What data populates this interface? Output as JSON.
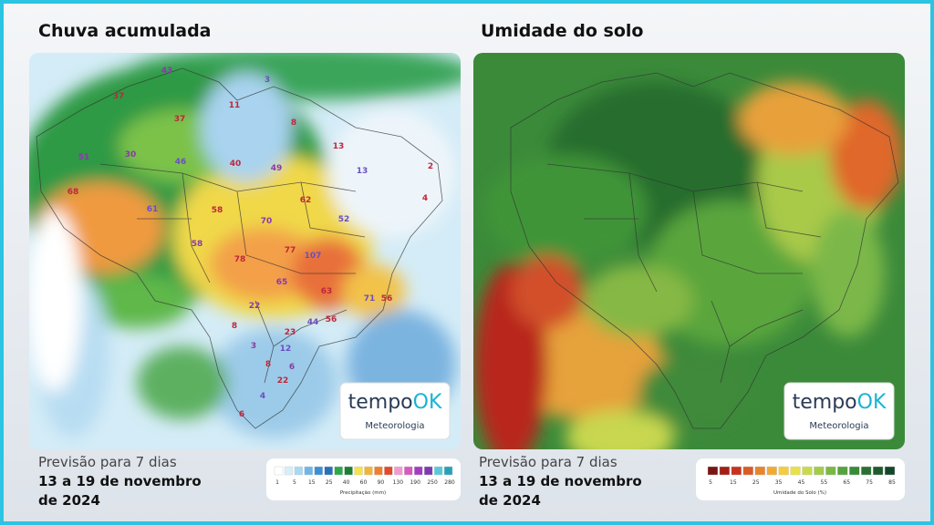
{
  "panels": [
    {
      "title": "Chuva acumulada",
      "subtitle": "Previsão para 7 dias",
      "period": [
        "13 a 19 de novembro",
        "de 2024"
      ],
      "logo": {
        "brand": "tempo",
        "brand_accent": "OK",
        "tagline": "Meteorologia"
      },
      "legend": {
        "title": "Precipitação (mm)",
        "labels": [
          "1",
          "5",
          "15",
          "25",
          "40",
          "60",
          "90",
          "130",
          "190",
          "250",
          "280"
        ]
      },
      "map_labels": [
        "37",
        "43",
        "11",
        "3",
        "8",
        "51",
        "37",
        "46",
        "40",
        "49",
        "13",
        "13",
        "2",
        "30",
        "68",
        "61",
        "58",
        "70",
        "62",
        "52",
        "4",
        "58",
        "77",
        "107",
        "78",
        "65",
        "63",
        "71",
        "56",
        "22",
        "8",
        "44",
        "56",
        "3",
        "23",
        "12",
        "8",
        "6",
        "22",
        "4",
        "6"
      ]
    },
    {
      "title": "Umidade do solo",
      "subtitle": "Previsão para 7 dias",
      "period": [
        "13 a 19 de novembro",
        "de 2024"
      ],
      "logo": {
        "brand": "tempo",
        "brand_accent": "OK",
        "tagline": "Meteorologia"
      },
      "legend": {
        "title": "Umidade do Solo (%)",
        "labels": [
          "5",
          "15",
          "25",
          "35",
          "45",
          "55",
          "65",
          "75",
          "85"
        ]
      }
    }
  ]
}
